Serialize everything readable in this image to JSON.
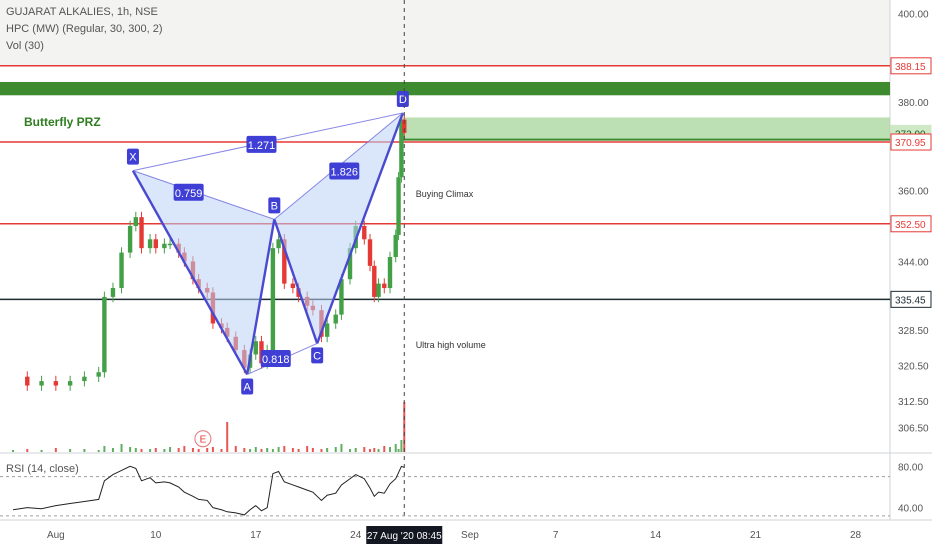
{
  "header": {
    "symbol_line": "GUJARAT ALKALIES, 1h, NSE",
    "indicator_line": "HPC (MW) (Regular, 30, 300, 2)",
    "volume_line": "Vol (30)",
    "rsi_line": "RSI (14, close)"
  },
  "chart_data": {
    "type": "candlestick",
    "price_axis": {
      "ylim": [
        301,
        403
      ],
      "ticks": [
        "400.00",
        "380.00",
        "360.00",
        "344.00",
        "328.50",
        "320.50",
        "312.50",
        "306.50"
      ],
      "tick_values": [
        400,
        380,
        360,
        344,
        328.5,
        320.5,
        312.5,
        306.5
      ]
    },
    "rsi_axis": {
      "ylim": [
        30,
        90
      ],
      "ticks": [
        "80.00",
        "40.00"
      ],
      "tick_values": [
        80,
        40
      ],
      "bands": [
        70,
        32
      ]
    },
    "x_axis": {
      "ticks": [
        "Aug",
        "10",
        "17",
        "24",
        "Sep",
        "7",
        "14",
        "21",
        "28"
      ],
      "tick_days": [
        3,
        10,
        17,
        24,
        32,
        38,
        45,
        52,
        59
      ],
      "cursor_label": "27 Aug '20  08:45",
      "cursor_day": 27.4
    },
    "price_labels": [
      {
        "text": "388.15",
        "value": 388.15,
        "style": "red"
      },
      {
        "text": "372.90",
        "value": 372.9,
        "style": "green"
      },
      {
        "text": "370.95",
        "value": 370.95,
        "style": "red"
      },
      {
        "text": "352.50",
        "value": 352.5,
        "style": "red"
      },
      {
        "text": "335.45",
        "value": 335.45,
        "style": "dark"
      }
    ],
    "horizontal_lines": [
      {
        "value": 388.15,
        "color": "#e53935"
      },
      {
        "value": 370.95,
        "color": "#e53935"
      },
      {
        "value": 352.5,
        "color": "#e53935"
      },
      {
        "value": 335.45,
        "color": "#1b2a2f"
      }
    ],
    "zones": [
      {
        "from": 381.5,
        "to": 384.5,
        "color": "#3d8b2e"
      },
      {
        "from": 371.5,
        "to": 376.5,
        "color": "#a5d69a"
      }
    ],
    "prz_label": "Butterfly PRZ",
    "pattern": {
      "points": [
        {
          "label": "X",
          "day": 8.4,
          "price": 364.5
        },
        {
          "label": "A",
          "day": 16.4,
          "price": 318.5
        },
        {
          "label": "B",
          "day": 18.3,
          "price": 353.5
        },
        {
          "label": "C",
          "day": 21.3,
          "price": 325.5
        },
        {
          "label": "D",
          "day": 27.3,
          "price": 377.5
        }
      ],
      "ratios": [
        {
          "text": "0.759",
          "day": 12.3,
          "price": 359.5
        },
        {
          "text": "1.271",
          "day": 17.4,
          "price": 370.3
        },
        {
          "text": "1.826",
          "day": 23.2,
          "price": 364.3
        },
        {
          "text": "0.818",
          "day": 18.4,
          "price": 322.0
        }
      ]
    },
    "annotations": [
      {
        "text": "Buying Climax",
        "day": 28.2,
        "price": 358.5
      },
      {
        "text": "Ultra high volume",
        "day": 28.2,
        "price": 324.5
      },
      {
        "text": "E",
        "day": 13.3,
        "price": 304.0
      }
    ],
    "price_path": [
      [
        0,
        318
      ],
      [
        1,
        316
      ],
      [
        2,
        317
      ],
      [
        3,
        316
      ],
      [
        4,
        317
      ],
      [
        5,
        318
      ],
      [
        6,
        319
      ],
      [
        6.4,
        336
      ],
      [
        7,
        338
      ],
      [
        7.6,
        346
      ],
      [
        8.2,
        352
      ],
      [
        8.6,
        354
      ],
      [
        9,
        347
      ],
      [
        9.6,
        349
      ],
      [
        10,
        347
      ],
      [
        10.6,
        348
      ],
      [
        11,
        348
      ],
      [
        11.6,
        346
      ],
      [
        12,
        344
      ],
      [
        12.6,
        340
      ],
      [
        13,
        338
      ],
      [
        13.6,
        337
      ],
      [
        14,
        330
      ],
      [
        14.6,
        329
      ],
      [
        15,
        327
      ],
      [
        15.6,
        324
      ],
      [
        16.2,
        320
      ],
      [
        16.6,
        323
      ],
      [
        17,
        326
      ],
      [
        17.4,
        321
      ],
      [
        17.8,
        324
      ],
      [
        18.2,
        347
      ],
      [
        18.6,
        349
      ],
      [
        19,
        339
      ],
      [
        19.6,
        338
      ],
      [
        20,
        336
      ],
      [
        20.6,
        334
      ],
      [
        21,
        333
      ],
      [
        21.6,
        327
      ],
      [
        22,
        330
      ],
      [
        22.6,
        332
      ],
      [
        23,
        340
      ],
      [
        23.6,
        347
      ],
      [
        24,
        352
      ],
      [
        24.6,
        349
      ],
      [
        25,
        343
      ],
      [
        25.3,
        336
      ],
      [
        25.6,
        339
      ],
      [
        26,
        338
      ],
      [
        26.4,
        345
      ],
      [
        26.8,
        350
      ],
      [
        27,
        363
      ],
      [
        27.2,
        376
      ],
      [
        27.4,
        373
      ]
    ],
    "rsi_path": [
      [
        0,
        38
      ],
      [
        1,
        40
      ],
      [
        2,
        39
      ],
      [
        3,
        42
      ],
      [
        4,
        44
      ],
      [
        5,
        46
      ],
      [
        6,
        48
      ],
      [
        6.4,
        66
      ],
      [
        7,
        72
      ],
      [
        7.6,
        76
      ],
      [
        8.2,
        80
      ],
      [
        8.6,
        78
      ],
      [
        9,
        66
      ],
      [
        9.6,
        69
      ],
      [
        10,
        64
      ],
      [
        10.6,
        65
      ],
      [
        11,
        64
      ],
      [
        11.6,
        60
      ],
      [
        12,
        55
      ],
      [
        12.6,
        51
      ],
      [
        13,
        48
      ],
      [
        13.6,
        47
      ],
      [
        14,
        40
      ],
      [
        14.6,
        38
      ],
      [
        15,
        36
      ],
      [
        15.6,
        35
      ],
      [
        16.2,
        33
      ],
      [
        16.6,
        38
      ],
      [
        17,
        42
      ],
      [
        17.4,
        37
      ],
      [
        17.8,
        40
      ],
      [
        18.2,
        73
      ],
      [
        18.6,
        75
      ],
      [
        19,
        65
      ],
      [
        19.6,
        62
      ],
      [
        20,
        60
      ],
      [
        20.6,
        57
      ],
      [
        21,
        55
      ],
      [
        21.6,
        47
      ],
      [
        22,
        52
      ],
      [
        22.6,
        54
      ],
      [
        23,
        62
      ],
      [
        23.6,
        68
      ],
      [
        24,
        72
      ],
      [
        24.6,
        68
      ],
      [
        25,
        59
      ],
      [
        25.3,
        51
      ],
      [
        25.6,
        55
      ],
      [
        26,
        54
      ],
      [
        26.4,
        63
      ],
      [
        26.8,
        68
      ],
      [
        27,
        74
      ],
      [
        27.2,
        80
      ],
      [
        27.4,
        79
      ]
    ]
  }
}
